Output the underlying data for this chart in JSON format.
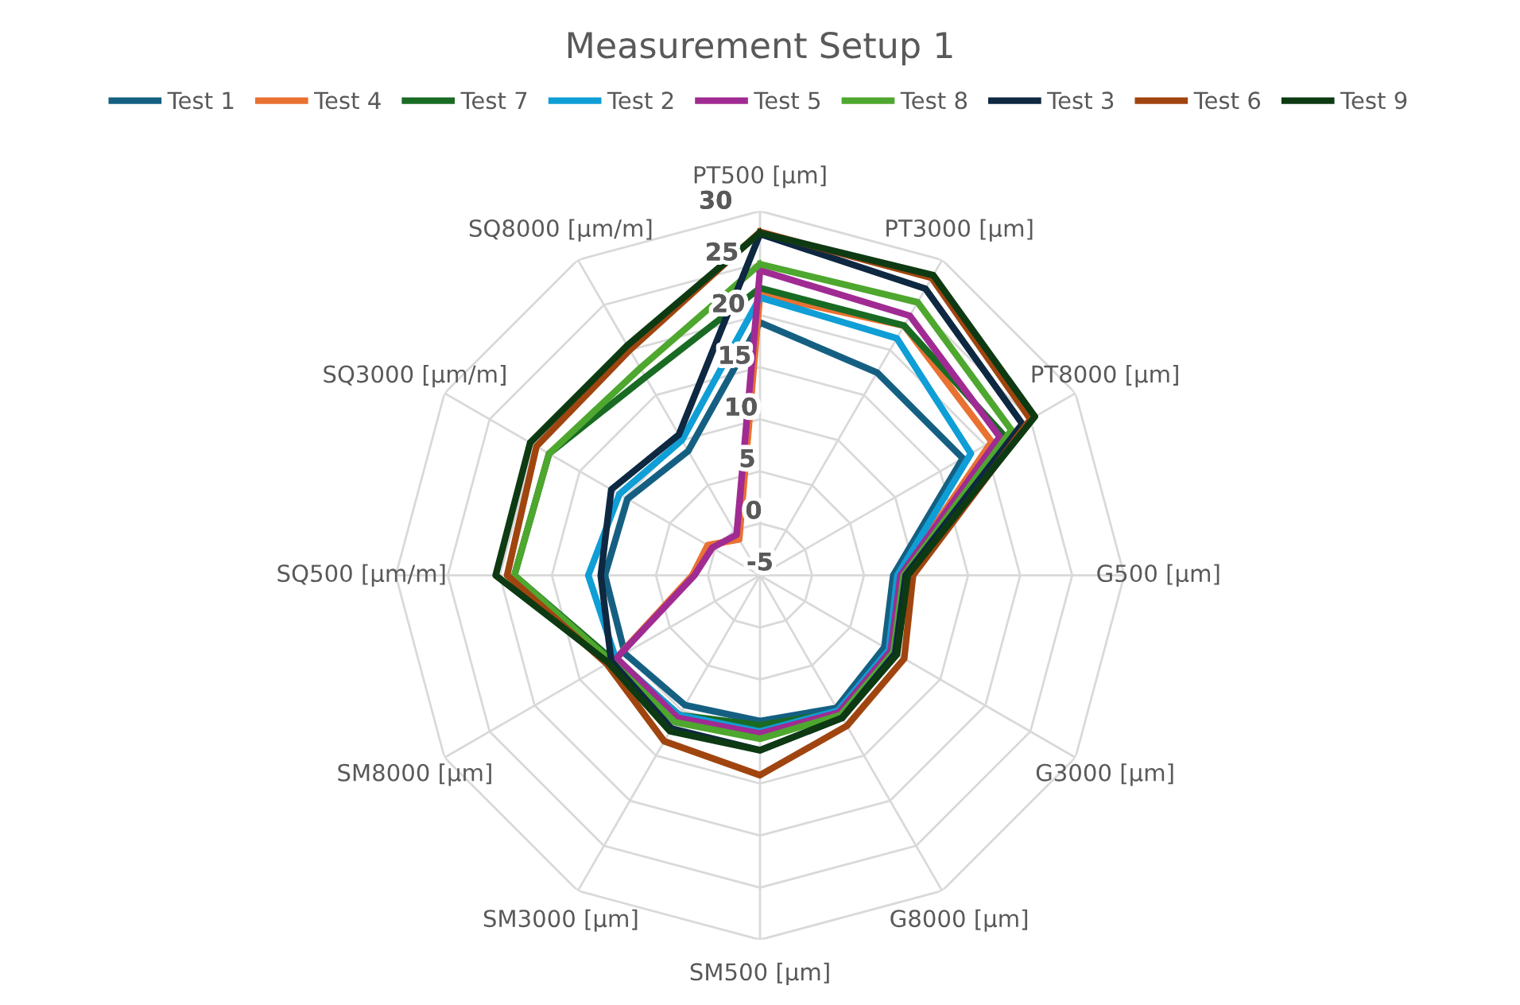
{
  "chart_data": {
    "type": "radar",
    "title": "Measurement Setup 1",
    "categories": [
      "PT500 [µm]",
      "PT3000 [µm]",
      "PT8000 [µm]",
      "G500 [µm]",
      "G3000 [µm]",
      "G8000 [µm]",
      "SM500 [µm]",
      "SM3000 [µm]",
      "SM8000 [µm]",
      "SQ500 [µm/m]",
      "SQ3000 [µm/m]",
      "SQ8000 [µm/m]"
    ],
    "ylim": [
      -5,
      30
    ],
    "yticks": [
      -5,
      0,
      5,
      10,
      15,
      20,
      25,
      30
    ],
    "grid": true,
    "legend": "top",
    "marker": "none",
    "line_style": "solid",
    "series": [
      {
        "name": "Test 1",
        "color": "#156082",
        "values": [
          19.3,
          17.5,
          17.5,
          7.8,
          8.8,
          9.7,
          9,
          9.4,
          10,
          9.9,
          9.7,
          8.8
        ]
      },
      {
        "name": "Test 4",
        "color": "#e97132",
        "values": [
          22,
          22.7,
          20.7,
          8.5,
          9.5,
          10.2,
          10,
          10.5,
          11,
          1.5,
          0.8,
          -1
        ]
      },
      {
        "name": "Test 7",
        "color": "#196b24",
        "values": [
          22.6,
          22.7,
          22,
          8.8,
          9.5,
          10.2,
          9.4,
          10.5,
          11.3,
          18.6,
          18.4,
          17
        ]
      },
      {
        "name": "Test 2",
        "color": "#0f9ed5",
        "values": [
          21.7,
          21.3,
          18.4,
          8.2,
          9.3,
          10,
          10,
          10.5,
          11,
          11.5,
          10.6,
          10
        ]
      },
      {
        "name": "Test 5",
        "color": "#a02b93",
        "values": [
          24.3,
          23.8,
          21.6,
          8.5,
          9.5,
          10.2,
          10.2,
          10.8,
          10.9,
          1.3,
          0.3,
          -0.5
        ]
      },
      {
        "name": "Test 8",
        "color": "#4ea72e",
        "values": [
          24.9,
          25.3,
          22.9,
          8.8,
          9.8,
          10.5,
          10.7,
          11.3,
          11.5,
          18.6,
          18.4,
          18
        ]
      },
      {
        "name": "Test 3",
        "color": "#0e2841",
        "values": [
          27.8,
          26.8,
          24.1,
          9,
          10,
          10.8,
          11.8,
          12,
          11.5,
          10.3,
          11.5,
          10.6
        ]
      },
      {
        "name": "Test 6",
        "color": "#a0450f",
        "values": [
          28,
          28,
          25,
          9.7,
          11,
          11.7,
          14.2,
          13.4,
          12,
          19.3,
          19.8,
          20
        ]
      },
      {
        "name": "Test 9",
        "color": "#0d3a12",
        "values": [
          27.9,
          28.3,
          25.5,
          9.2,
          10.2,
          10.8,
          11.8,
          12.3,
          11.8,
          20.4,
          20.5,
          20.5
        ]
      }
    ]
  }
}
